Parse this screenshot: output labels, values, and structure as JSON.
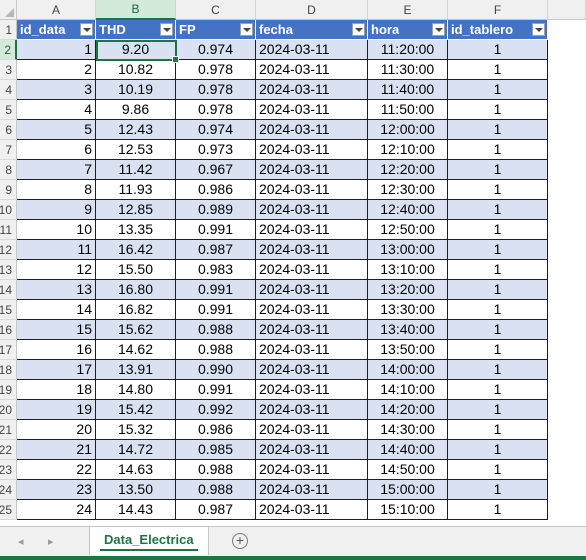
{
  "columns": [
    "A",
    "B",
    "C",
    "D",
    "E",
    "F"
  ],
  "selected_column": "B",
  "selected_row": 2,
  "row_numbers": [
    "1",
    "2",
    "3",
    "4",
    "5",
    "6",
    "7",
    "8",
    "9",
    "10",
    "11",
    "12",
    "13",
    "14",
    "15",
    "16",
    "17",
    "18",
    "19",
    "20",
    "21",
    "22",
    "23",
    "24",
    "25"
  ],
  "headers": [
    "id_data",
    "THD",
    "FP",
    "fecha",
    "hora",
    "id_tablero"
  ],
  "rows": [
    [
      "1",
      "9.20",
      "0.974",
      "2024-03-11",
      "11:20:00",
      "1"
    ],
    [
      "2",
      "10.82",
      "0.978",
      "2024-03-11",
      "11:30:00",
      "1"
    ],
    [
      "3",
      "10.19",
      "0.978",
      "2024-03-11",
      "11:40:00",
      "1"
    ],
    [
      "4",
      "9.86",
      "0.978",
      "2024-03-11",
      "11:50:00",
      "1"
    ],
    [
      "5",
      "12.43",
      "0.974",
      "2024-03-11",
      "12:00:00",
      "1"
    ],
    [
      "6",
      "12.53",
      "0.973",
      "2024-03-11",
      "12:10:00",
      "1"
    ],
    [
      "7",
      "11.42",
      "0.967",
      "2024-03-11",
      "12:20:00",
      "1"
    ],
    [
      "8",
      "11.93",
      "0.986",
      "2024-03-11",
      "12:30:00",
      "1"
    ],
    [
      "9",
      "12.85",
      "0.989",
      "2024-03-11",
      "12:40:00",
      "1"
    ],
    [
      "10",
      "13.35",
      "0.991",
      "2024-03-11",
      "12:50:00",
      "1"
    ],
    [
      "11",
      "16.42",
      "0.987",
      "2024-03-11",
      "13:00:00",
      "1"
    ],
    [
      "12",
      "15.50",
      "0.983",
      "2024-03-11",
      "13:10:00",
      "1"
    ],
    [
      "13",
      "16.80",
      "0.991",
      "2024-03-11",
      "13:20:00",
      "1"
    ],
    [
      "14",
      "16.82",
      "0.991",
      "2024-03-11",
      "13:30:00",
      "1"
    ],
    [
      "15",
      "15.62",
      "0.988",
      "2024-03-11",
      "13:40:00",
      "1"
    ],
    [
      "16",
      "14.62",
      "0.988",
      "2024-03-11",
      "13:50:00",
      "1"
    ],
    [
      "17",
      "13.91",
      "0.990",
      "2024-03-11",
      "14:00:00",
      "1"
    ],
    [
      "18",
      "14.80",
      "0.991",
      "2024-03-11",
      "14:10:00",
      "1"
    ],
    [
      "19",
      "15.42",
      "0.992",
      "2024-03-11",
      "14:20:00",
      "1"
    ],
    [
      "20",
      "15.32",
      "0.986",
      "2024-03-11",
      "14:30:00",
      "1"
    ],
    [
      "21",
      "14.72",
      "0.985",
      "2024-03-11",
      "14:40:00",
      "1"
    ],
    [
      "22",
      "14.63",
      "0.988",
      "2024-03-11",
      "14:50:00",
      "1"
    ],
    [
      "23",
      "13.50",
      "0.988",
      "2024-03-11",
      "15:00:00",
      "1"
    ],
    [
      "24",
      "14.43",
      "0.987",
      "2024-03-11",
      "15:10:00",
      "1"
    ]
  ],
  "tabs": {
    "prev_icon": "◂",
    "next_icon": "▸",
    "active": "Data_Electrica",
    "add_icon": "+"
  },
  "colors": {
    "header_fill": "#4472c4",
    "band_fill": "#d9e1f2",
    "accent": "#217346"
  }
}
